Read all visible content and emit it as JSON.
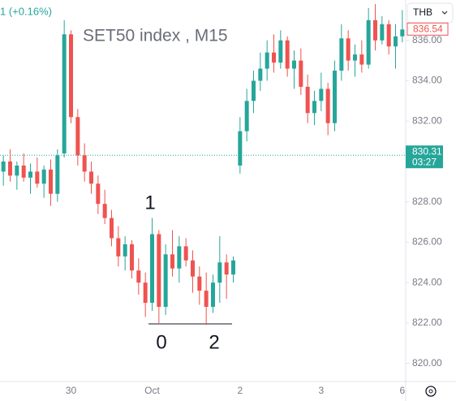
{
  "chart_data": {
    "type": "candlestick",
    "title": "SET50 index , M15",
    "legend_text": "1 (+0.16%)",
    "currency": "THB",
    "categories": [
      null,
      null,
      null,
      null,
      null,
      null,
      null,
      null,
      null,
      null,
      "30",
      null,
      null,
      null,
      null,
      null,
      null,
      null,
      null,
      null,
      null,
      null,
      "Oct",
      null,
      null,
      null,
      null,
      null,
      null,
      null,
      null,
      null,
      null,
      null,
      null,
      "2",
      null,
      null,
      null,
      null,
      null,
      null,
      null,
      null,
      null,
      null,
      null,
      "3",
      null,
      null,
      null,
      null,
      null,
      null,
      null,
      null,
      null,
      null,
      null,
      "6"
    ],
    "open": [
      829.5,
      830.0,
      829.3,
      829.8,
      829.2,
      829.5,
      828.9,
      829.6,
      828.4,
      830.4,
      836.3,
      832.2,
      830.3,
      829.5,
      828.9,
      827.9,
      827.2,
      826.2,
      825.3,
      825.9,
      824.6,
      824.0,
      823.0,
      826.4,
      822.8,
      825.4,
      824.7,
      825.8,
      825.1,
      824.3,
      823.6,
      822.8,
      824.0,
      825.0,
      824.4,
      829.8,
      831.5,
      833.0,
      834.0,
      834.6,
      835.4,
      834.9,
      836.0,
      834.6,
      835.0,
      833.7,
      832.4,
      833.0,
      833.6,
      831.9,
      834.5,
      836.1,
      835.0,
      835.3,
      834.8,
      837.0,
      836.0,
      836.8,
      835.7,
      836.2
    ],
    "high": [
      830.3,
      830.6,
      830.0,
      830.4,
      829.9,
      830.2,
      829.8,
      830.1,
      830.6,
      837.0,
      836.5,
      832.6,
      830.9,
      830.0,
      829.3,
      828.6,
      827.6,
      826.8,
      826.3,
      826.1,
      825.2,
      824.5,
      827.2,
      826.6,
      825.9,
      826.6,
      826.3,
      826.2,
      825.6,
      824.8,
      824.5,
      824.4,
      826.3,
      825.4,
      825.3,
      832.2,
      833.6,
      834.5,
      835.4,
      836.0,
      836.3,
      836.5,
      836.2,
      835.5,
      835.6,
      834.3,
      833.5,
      834.4,
      833.9,
      835.0,
      836.8,
      836.5,
      835.8,
      836.0,
      837.6,
      837.8,
      837.2,
      837.0,
      836.8,
      837.5
    ],
    "low": [
      828.8,
      829.0,
      828.6,
      829.0,
      828.4,
      828.7,
      828.2,
      827.8,
      828.0,
      830.2,
      831.9,
      829.8,
      829.0,
      828.4,
      827.4,
      826.9,
      825.8,
      824.8,
      824.6,
      824.2,
      823.4,
      822.3,
      822.6,
      822.0,
      822.4,
      824.3,
      824.0,
      824.8,
      823.5,
      822.9,
      821.9,
      822.5,
      823.0,
      823.2,
      824.0,
      829.4,
      831.0,
      832.4,
      833.5,
      834.0,
      834.4,
      834.6,
      834.2,
      833.6,
      833.3,
      831.9,
      831.8,
      832.5,
      831.3,
      831.5,
      834.0,
      834.5,
      834.2,
      834.4,
      834.6,
      835.5,
      835.8,
      835.3,
      834.6,
      835.9
    ],
    "close": [
      830.0,
      829.3,
      829.8,
      829.2,
      829.5,
      828.9,
      829.6,
      828.4,
      830.3,
      836.3,
      832.2,
      830.3,
      829.5,
      828.9,
      827.9,
      827.2,
      826.2,
      825.3,
      825.9,
      824.6,
      824.0,
      823.0,
      826.4,
      822.8,
      825.4,
      824.7,
      825.8,
      825.1,
      824.3,
      823.6,
      822.8,
      824.0,
      825.0,
      824.4,
      825.1,
      831.5,
      833.0,
      834.0,
      834.6,
      835.4,
      834.9,
      836.0,
      834.6,
      835.0,
      833.7,
      832.4,
      833.0,
      833.6,
      831.9,
      834.5,
      836.1,
      835.0,
      835.3,
      834.8,
      837.0,
      836.0,
      836.8,
      835.7,
      836.2,
      836.54
    ],
    "up_color": "#26a69a",
    "down_color": "#ef5350",
    "ylim": [
      819.1,
      838.0
    ],
    "yticks": [
      {
        "value": 820,
        "label": "820.00"
      },
      {
        "value": 822,
        "label": "822.00"
      },
      {
        "value": 824,
        "label": "824.00"
      },
      {
        "value": 826,
        "label": "826.00"
      },
      {
        "value": 828,
        "label": "828.00"
      },
      {
        "value": 830,
        "label": "830.00"
      },
      {
        "value": 832,
        "label": "832.00"
      },
      {
        "value": 834,
        "label": "834.00"
      },
      {
        "value": 836,
        "label": "836.00"
      }
    ],
    "price_line": {
      "value": 830.31,
      "time": "03:27"
    },
    "annotations": [
      "1",
      "0",
      "2"
    ]
  }
}
